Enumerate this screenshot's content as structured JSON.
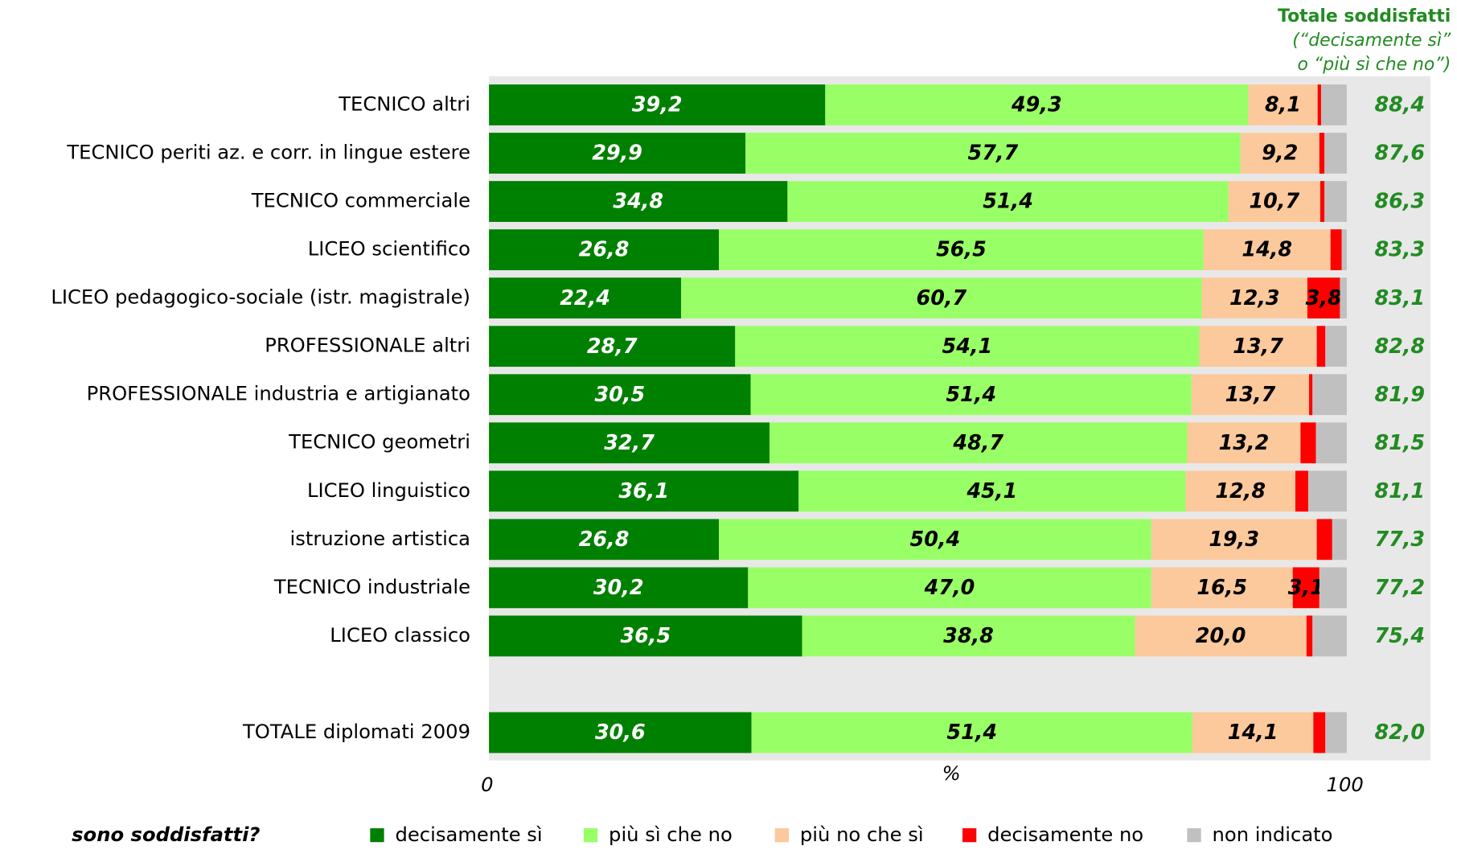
{
  "chart_data": {
    "type": "stacked_barh",
    "categories": [
      "TECNICO altri",
      "TECNICO periti az. e corr. in lingue estere",
      "TECNICO commerciale",
      "LICEO scientifico",
      "LICEO pedagogico-sociale (istr. magistrale)",
      "PROFESSIONALE altri",
      "PROFESSIONALE industria e artigianato",
      "TECNICO geometri",
      "LICEO linguistico",
      "istruzione artistica",
      "TECNICO industriale",
      "LICEO classico",
      null,
      "TOTALE diplomati 2009"
    ],
    "series": [
      {
        "name": "decisamente sì",
        "color": "#008000",
        "label_color": "#ffffff",
        "values": [
          39.2,
          29.9,
          34.8,
          26.8,
          22.4,
          28.7,
          30.5,
          32.7,
          36.1,
          26.8,
          30.2,
          36.5,
          null,
          30.6
        ],
        "value_labels": [
          "39,2",
          "29,9",
          "34,8",
          "26,8",
          "22,4",
          "28,7",
          "30,5",
          "32,7",
          "36,1",
          "26,8",
          "30,2",
          "36,5",
          null,
          "30,6"
        ]
      },
      {
        "name": "più sì che no",
        "color": "#99ff66",
        "label_color": "#000000",
        "values": [
          49.3,
          57.7,
          51.4,
          56.5,
          60.7,
          54.1,
          51.4,
          48.7,
          45.1,
          50.4,
          47.0,
          38.8,
          null,
          51.4
        ],
        "value_labels": [
          "49,3",
          "57,7",
          "51,4",
          "56,5",
          "60,7",
          "54,1",
          "51,4",
          "48,7",
          "45,1",
          "50,4",
          "47,0",
          "38,8",
          null,
          "51,4"
        ]
      },
      {
        "name": "più no che sì",
        "color": "#fcc99c",
        "label_color": "#000000",
        "values": [
          8.1,
          9.2,
          10.7,
          14.8,
          12.3,
          13.7,
          13.7,
          13.2,
          12.8,
          19.3,
          16.5,
          20.0,
          null,
          14.1
        ],
        "value_labels": [
          "8,1",
          "9,2",
          "10,7",
          "14,8",
          "12,3",
          "13,7",
          "13,7",
          "13,2",
          "12,8",
          "19,3",
          "16,5",
          "20,0",
          null,
          "14,1"
        ]
      },
      {
        "name": "decisamente no",
        "color": "#ff0000",
        "label_color": "#000000",
        "values": [
          0.4,
          0.6,
          0.5,
          1.3,
          3.8,
          1.0,
          0.4,
          1.8,
          1.5,
          1.8,
          3.1,
          0.7,
          null,
          1.4
        ],
        "value_labels": [
          null,
          null,
          null,
          null,
          "3,8",
          null,
          null,
          null,
          null,
          null,
          "3,1",
          null,
          null,
          null
        ]
      },
      {
        "name": "non indicato",
        "color": "#c0c0c0",
        "label_color": "#000000",
        "values": [
          3.0,
          2.6,
          2.6,
          0.6,
          0.8,
          2.5,
          4.0,
          3.6,
          4.5,
          1.7,
          3.2,
          4.0,
          null,
          2.5
        ]
      }
    ],
    "totals": {
      "title": [
        "Totale soddisfatti",
        "(“decisamente sì”",
        "o “più sì che no”)"
      ],
      "color": "#228b22",
      "values": [
        88.4,
        87.6,
        86.3,
        83.3,
        83.1,
        82.8,
        81.9,
        81.5,
        81.1,
        77.3,
        77.2,
        75.4,
        null,
        82.0
      ],
      "value_labels": [
        "88,4",
        "87,6",
        "86,3",
        "83,3",
        "83,1",
        "82,8",
        "81,9",
        "81,5",
        "81,1",
        "77,3",
        "77,2",
        "75,4",
        null,
        "82,0"
      ]
    },
    "xlabel": "%",
    "xlim": [
      0,
      100
    ],
    "xticks": [
      0,
      100
    ],
    "legend_title": "sono soddisfatti?",
    "legend": "bottom",
    "background": "#e8e8e8"
  }
}
